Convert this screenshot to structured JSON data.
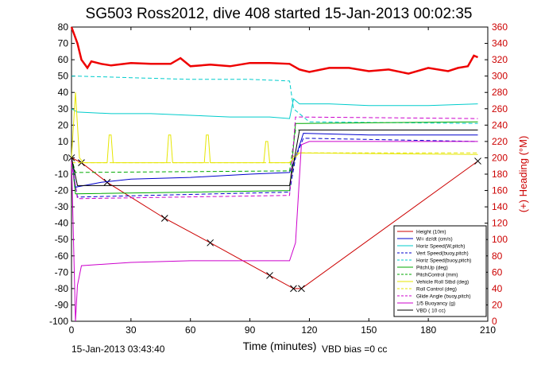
{
  "chart_data": {
    "type": "line",
    "title": "SG503 Ross2012, dive 408 started 15-Jan-2013 00:02:35",
    "xlabel": "Time (minutes)",
    "ylabel_right": "(+) Heading (°M)",
    "xlim": [
      0,
      210
    ],
    "ylim": [
      -100,
      80
    ],
    "ylim_right": [
      0,
      360
    ],
    "x_ticks": [
      0,
      30,
      60,
      90,
      120,
      150,
      180,
      210
    ],
    "y_ticks": [
      -100,
      -90,
      -80,
      -70,
      -60,
      -50,
      -40,
      -30,
      -20,
      -10,
      0,
      10,
      20,
      30,
      40,
      50,
      60,
      70,
      80
    ],
    "y_ticks_right": [
      0,
      20,
      40,
      60,
      80,
      100,
      120,
      140,
      160,
      180,
      200,
      220,
      240,
      260,
      280,
      300,
      320,
      340,
      360
    ],
    "grid": false,
    "legend_position": "bottom-right",
    "footer_left": "15-Jan-2013 03:43:40",
    "footer_right": "VBD bias =0 cc",
    "series": [
      {
        "name": "Height (10m)",
        "color": "#cc0000",
        "style": "solid",
        "marker": "points",
        "x": [
          0,
          5,
          18,
          47,
          70,
          100,
          112,
          116,
          205
        ],
        "y": [
          0,
          -3,
          -15,
          -37,
          -52,
          -72,
          -80,
          -80,
          -2
        ]
      },
      {
        "name": "W= dz/dt (cm/s)",
        "color": "#0000cc",
        "style": "solid",
        "x": [
          0,
          2,
          15,
          30,
          60,
          90,
          110,
          113,
          117,
          150,
          180,
          205
        ],
        "y": [
          0,
          -18,
          -15,
          -13,
          -12,
          -10,
          -9,
          0,
          15,
          14,
          14,
          14
        ]
      },
      {
        "name": "Horiz Speed(W,pitch)",
        "color": "#00cccc",
        "style": "solid",
        "x": [
          0,
          3,
          20,
          40,
          60,
          80,
          100,
          110,
          112,
          115,
          130,
          150,
          180,
          205
        ],
        "y": [
          30,
          28,
          27,
          27,
          26,
          25,
          25,
          24,
          36,
          33,
          33,
          32,
          32,
          33
        ]
      },
      {
        "name": "Vert Speed(buoy,pitch)",
        "color": "#0000cc",
        "style": "dash",
        "x": [
          0,
          3,
          110,
          113,
          117,
          205
        ],
        "y": [
          -3,
          -24,
          -21,
          0,
          12,
          10
        ]
      },
      {
        "name": "Horiz Speed(buoy,pitch)",
        "color": "#00cccc",
        "style": "dash",
        "x": [
          0,
          3,
          30,
          60,
          90,
          110,
          112,
          120,
          205
        ],
        "y": [
          50,
          50,
          49,
          48,
          48,
          47,
          30,
          22,
          21
        ]
      },
      {
        "name": "PitchUp (deg)",
        "color": "#00aa00",
        "style": "solid",
        "x": [
          0,
          2,
          60,
          110,
          113,
          205
        ],
        "y": [
          0,
          -22,
          -21,
          -20,
          21,
          22
        ]
      },
      {
        "name": "PitchControl (mm)",
        "color": "#00aa00",
        "style": "dash",
        "x": [
          0,
          2,
          110,
          113,
          205
        ],
        "y": [
          0,
          -9,
          -8,
          17,
          17
        ]
      },
      {
        "name": "Vehicle Roll Stbd (deg)",
        "color": "#e6e600",
        "style": "solid",
        "x": [
          0,
          2,
          4,
          6,
          18,
          19,
          20,
          21,
          48,
          49,
          50,
          51,
          67,
          68,
          69,
          70,
          97,
          98,
          99,
          100,
          110,
          115,
          205
        ],
        "y": [
          0,
          40,
          0,
          -3,
          -3,
          14,
          14,
          -3,
          -3,
          14,
          14,
          -3,
          -3,
          14,
          14,
          -3,
          -3,
          10,
          10,
          -3,
          -3,
          3,
          2
        ]
      },
      {
        "name": "Roll Control (deg)",
        "color": "#e6e600",
        "style": "dash",
        "x": [
          0,
          110,
          113,
          205
        ],
        "y": [
          -3,
          -3,
          3,
          3
        ]
      },
      {
        "name": "Glide Angle (buoy,pitch)",
        "color": "#cc00cc",
        "style": "dash",
        "x": [
          0,
          3,
          110,
          113,
          205
        ],
        "y": [
          -3,
          -25,
          -23,
          25,
          24
        ]
      },
      {
        "name": "1/5 Buoyancy (g)",
        "color": "#cc00cc",
        "style": "solid",
        "x": [
          0,
          2,
          3,
          5,
          30,
          60,
          90,
          110,
          113,
          116,
          120,
          205
        ],
        "y": [
          0,
          -100,
          -78,
          -66,
          -64,
          -63,
          -63,
          -63,
          -52,
          8,
          10,
          10
        ]
      },
      {
        "name": "VBD ( 10 cc)",
        "color": "#000000",
        "style": "solid",
        "x": [
          0,
          3,
          110,
          115,
          205
        ],
        "y": [
          0,
          -17,
          -17,
          17,
          17
        ]
      },
      {
        "name": "Heading (°M)",
        "color": "#ee0000",
        "style": "thick",
        "axis": "right",
        "x": [
          0,
          3,
          5,
          8,
          10,
          15,
          20,
          30,
          40,
          50,
          55,
          60,
          70,
          80,
          90,
          100,
          110,
          115,
          120,
          130,
          140,
          150,
          160,
          170,
          180,
          190,
          195,
          200,
          203,
          205
        ],
        "y": [
          360,
          340,
          320,
          310,
          318,
          315,
          313,
          316,
          315,
          315,
          322,
          312,
          314,
          312,
          316,
          316,
          315,
          308,
          305,
          310,
          310,
          306,
          308,
          303,
          310,
          306,
          310,
          312,
          325,
          323
        ]
      }
    ]
  }
}
